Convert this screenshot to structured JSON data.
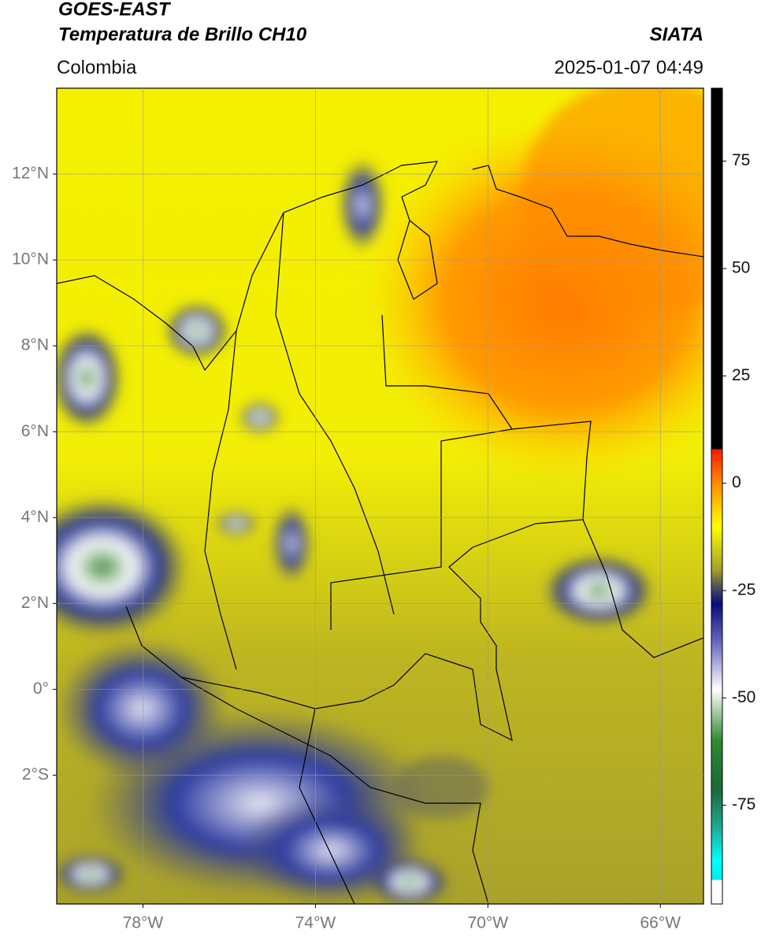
{
  "header": {
    "title": "GOES-EAST",
    "subtitle": "Temperatura de Brillo CH10",
    "source": "SIATA",
    "region": "Colombia",
    "timestamp": "2025-01-07 04:49"
  },
  "map": {
    "lon_range": [
      -80,
      -65
    ],
    "lat_range": [
      -5,
      14
    ],
    "grid": true,
    "lon_ticks": [
      {
        "value": -78,
        "label": "78°W"
      },
      {
        "value": -74,
        "label": "74°W"
      },
      {
        "value": -70,
        "label": "70°W"
      },
      {
        "value": -66,
        "label": "66°W"
      }
    ],
    "lat_ticks": [
      {
        "value": 12,
        "label": "12°N"
      },
      {
        "value": 10,
        "label": "10°N"
      },
      {
        "value": 8,
        "label": "8°N"
      },
      {
        "value": 6,
        "label": "6°N"
      },
      {
        "value": 4,
        "label": "4°N"
      },
      {
        "value": 2,
        "label": "2°N"
      },
      {
        "value": 0,
        "label": "0°"
      },
      {
        "value": -2,
        "label": "2°S"
      }
    ]
  },
  "colorbar": {
    "range": [
      -98,
      92
    ],
    "ticks": [
      75,
      50,
      25,
      0,
      -25,
      -50,
      -75
    ]
  }
}
